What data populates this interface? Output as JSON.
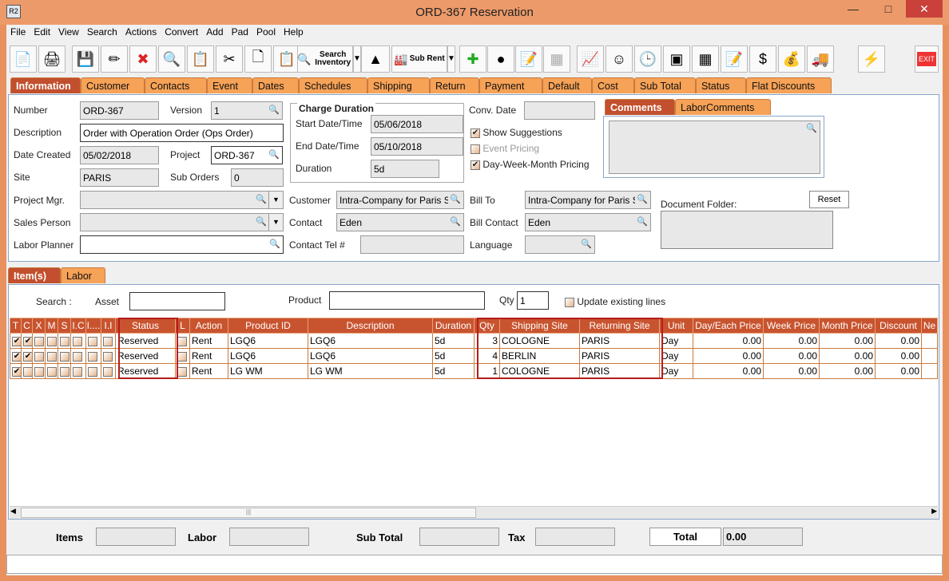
{
  "window": {
    "title": "ORD-367 Reservation",
    "app_icon": "R2"
  },
  "menu": [
    "File",
    "Edit",
    "View",
    "Search",
    "Actions",
    "Convert",
    "Add",
    "Pad",
    "Pool",
    "Help"
  ],
  "toolbar": {
    "search_inventory": "Search Inventory",
    "sub_rent": "Sub Rent",
    "exit": "EXIT"
  },
  "main_tabs": [
    "Information",
    "Customer",
    "Contacts",
    "Event",
    "Dates",
    "Schedules",
    "Shipping",
    "Return",
    "Payment",
    "Default",
    "Cost",
    "Sub Total",
    "Status",
    "Flat Discounts"
  ],
  "info": {
    "number_label": "Number",
    "number": "ORD-367",
    "version_label": "Version",
    "version": "1",
    "description_label": "Description",
    "description": "Order with Operation Order (Ops Order)",
    "date_created_label": "Date Created",
    "date_created": "05/02/2018",
    "project_label": "Project",
    "project": "ORD-367",
    "site_label": "Site",
    "site": "PARIS",
    "sub_orders_label": "Sub Orders",
    "sub_orders": "0",
    "project_mgr_label": "Project Mgr.",
    "project_mgr": "",
    "sales_person_label": "Sales Person",
    "sales_person": "",
    "labor_planner_label": "Labor Planner",
    "labor_planner": "",
    "charge_duration_title": "Charge Duration",
    "start_label": "Start Date/Time",
    "start": "05/06/2018",
    "end_label": "End Date/Time",
    "end": "05/10/2018",
    "duration_label": "Duration",
    "duration": "5d",
    "conv_date_label": "Conv. Date",
    "conv_date": "",
    "show_suggestions": "Show Suggestions",
    "event_pricing": "Event Pricing",
    "dwm_pricing": "Day-Week-Month Pricing",
    "customer_label": "Customer",
    "customer": "Intra-Company for Paris Site",
    "contact_label": "Contact",
    "contact": "Eden",
    "contact_tel_label": "Contact Tel #",
    "contact_tel": "",
    "bill_to_label": "Bill To",
    "bill_to": "Intra-Company for Paris Site",
    "bill_contact_label": "Bill Contact",
    "bill_contact": "Eden",
    "language_label": "Language",
    "language": "",
    "comments_tabs": [
      "Comments",
      "LaborComments"
    ],
    "document_folder_label": "Document Folder:",
    "reset": "Reset"
  },
  "item_tabs": [
    "Item(s)",
    "Labor"
  ],
  "search": {
    "search_label": "Search :",
    "asset_label": "Asset",
    "asset": "",
    "product_label": "Product",
    "product": "",
    "qty_label": "Qty",
    "qty": "1",
    "update_existing": "Update existing lines"
  },
  "grid": {
    "columns": [
      "T",
      "C",
      "X",
      "M",
      "S",
      "I.C",
      "I....",
      "I.I",
      "Status",
      "L",
      "Action",
      "Product ID",
      "Description",
      "Duration",
      "Qty",
      "Shipping Site",
      "Returning Site",
      "Unit",
      "Day/Each Price",
      "Week Price",
      "Month Price",
      "Discount",
      "Ne"
    ],
    "rows": [
      {
        "t": true,
        "c": true,
        "status": "Reserved",
        "action": "Rent",
        "product_id": "LGQ6",
        "description": "LGQ6",
        "duration": "5d",
        "qty": "3",
        "shipping": "COLOGNE",
        "returning": "PARIS",
        "unit": "Day",
        "day": "0.00",
        "week": "0.00",
        "month": "0.00",
        "discount": "0.00"
      },
      {
        "t": true,
        "c": true,
        "status": "Reserved",
        "action": "Rent",
        "product_id": "LGQ6",
        "description": "LGQ6",
        "duration": "5d",
        "qty": "4",
        "shipping": "BERLIN",
        "returning": "PARIS",
        "unit": "Day",
        "day": "0.00",
        "week": "0.00",
        "month": "0.00",
        "discount": "0.00"
      },
      {
        "t": true,
        "c": false,
        "status": "Reserved",
        "action": "Rent",
        "product_id": "LG WM",
        "description": "LG WM",
        "duration": "5d",
        "qty": "1",
        "shipping": "COLOGNE",
        "returning": "PARIS",
        "unit": "Day",
        "day": "0.00",
        "week": "0.00",
        "month": "0.00",
        "discount": "0.00"
      }
    ]
  },
  "totals": {
    "items_label": "Items",
    "items": "",
    "labor_label": "Labor",
    "labor": "",
    "subtotal_label": "Sub Total",
    "subtotal": "",
    "tax_label": "Tax",
    "tax": "",
    "total_label": "Total",
    "total": "0.00"
  },
  "colors": {
    "frame": "#e9915e",
    "header": "#c8542f",
    "tab": "#f6a257",
    "highlight": "#b71c1c"
  }
}
